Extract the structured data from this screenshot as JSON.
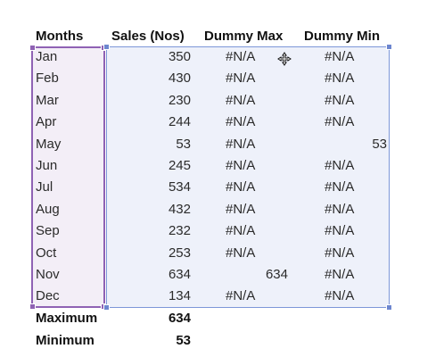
{
  "headers": {
    "months": "Months",
    "sales": "Sales (Nos)",
    "dummy_max": "Dummy Max",
    "dummy_min": "Dummy Min"
  },
  "rows": [
    {
      "month": "Jan",
      "sales": "350",
      "max": "#N/A",
      "min": "#N/A"
    },
    {
      "month": "Feb",
      "sales": "430",
      "max": "#N/A",
      "min": "#N/A"
    },
    {
      "month": "Mar",
      "sales": "230",
      "max": "#N/A",
      "min": "#N/A"
    },
    {
      "month": "Apr",
      "sales": "244",
      "max": "#N/A",
      "min": "#N/A"
    },
    {
      "month": "May",
      "sales": "53",
      "max": "#N/A",
      "min": "53"
    },
    {
      "month": "Jun",
      "sales": "245",
      "max": "#N/A",
      "min": "#N/A"
    },
    {
      "month": "Jul",
      "sales": "534",
      "max": "#N/A",
      "min": "#N/A"
    },
    {
      "month": "Aug",
      "sales": "432",
      "max": "#N/A",
      "min": "#N/A"
    },
    {
      "month": "Sep",
      "sales": "232",
      "max": "#N/A",
      "min": "#N/A"
    },
    {
      "month": "Oct",
      "sales": "253",
      "max": "#N/A",
      "min": "#N/A"
    },
    {
      "month": "Nov",
      "sales": "634",
      "max": "634",
      "min": "#N/A"
    },
    {
      "month": "Dec",
      "sales": "134",
      "max": "#N/A",
      "min": "#N/A"
    }
  ],
  "summary": {
    "maximum_label": "Maximum",
    "maximum_value": "634",
    "minimum_label": "Minimum",
    "minimum_value": "53"
  },
  "colors": {
    "months_selection_border": "#8f62b4",
    "months_selection_fill": "#f3eef7",
    "data_selection_border": "#7d97d8",
    "data_selection_fill": "#eef1fa"
  },
  "icons": {
    "cursor": "move-cursor-icon"
  }
}
